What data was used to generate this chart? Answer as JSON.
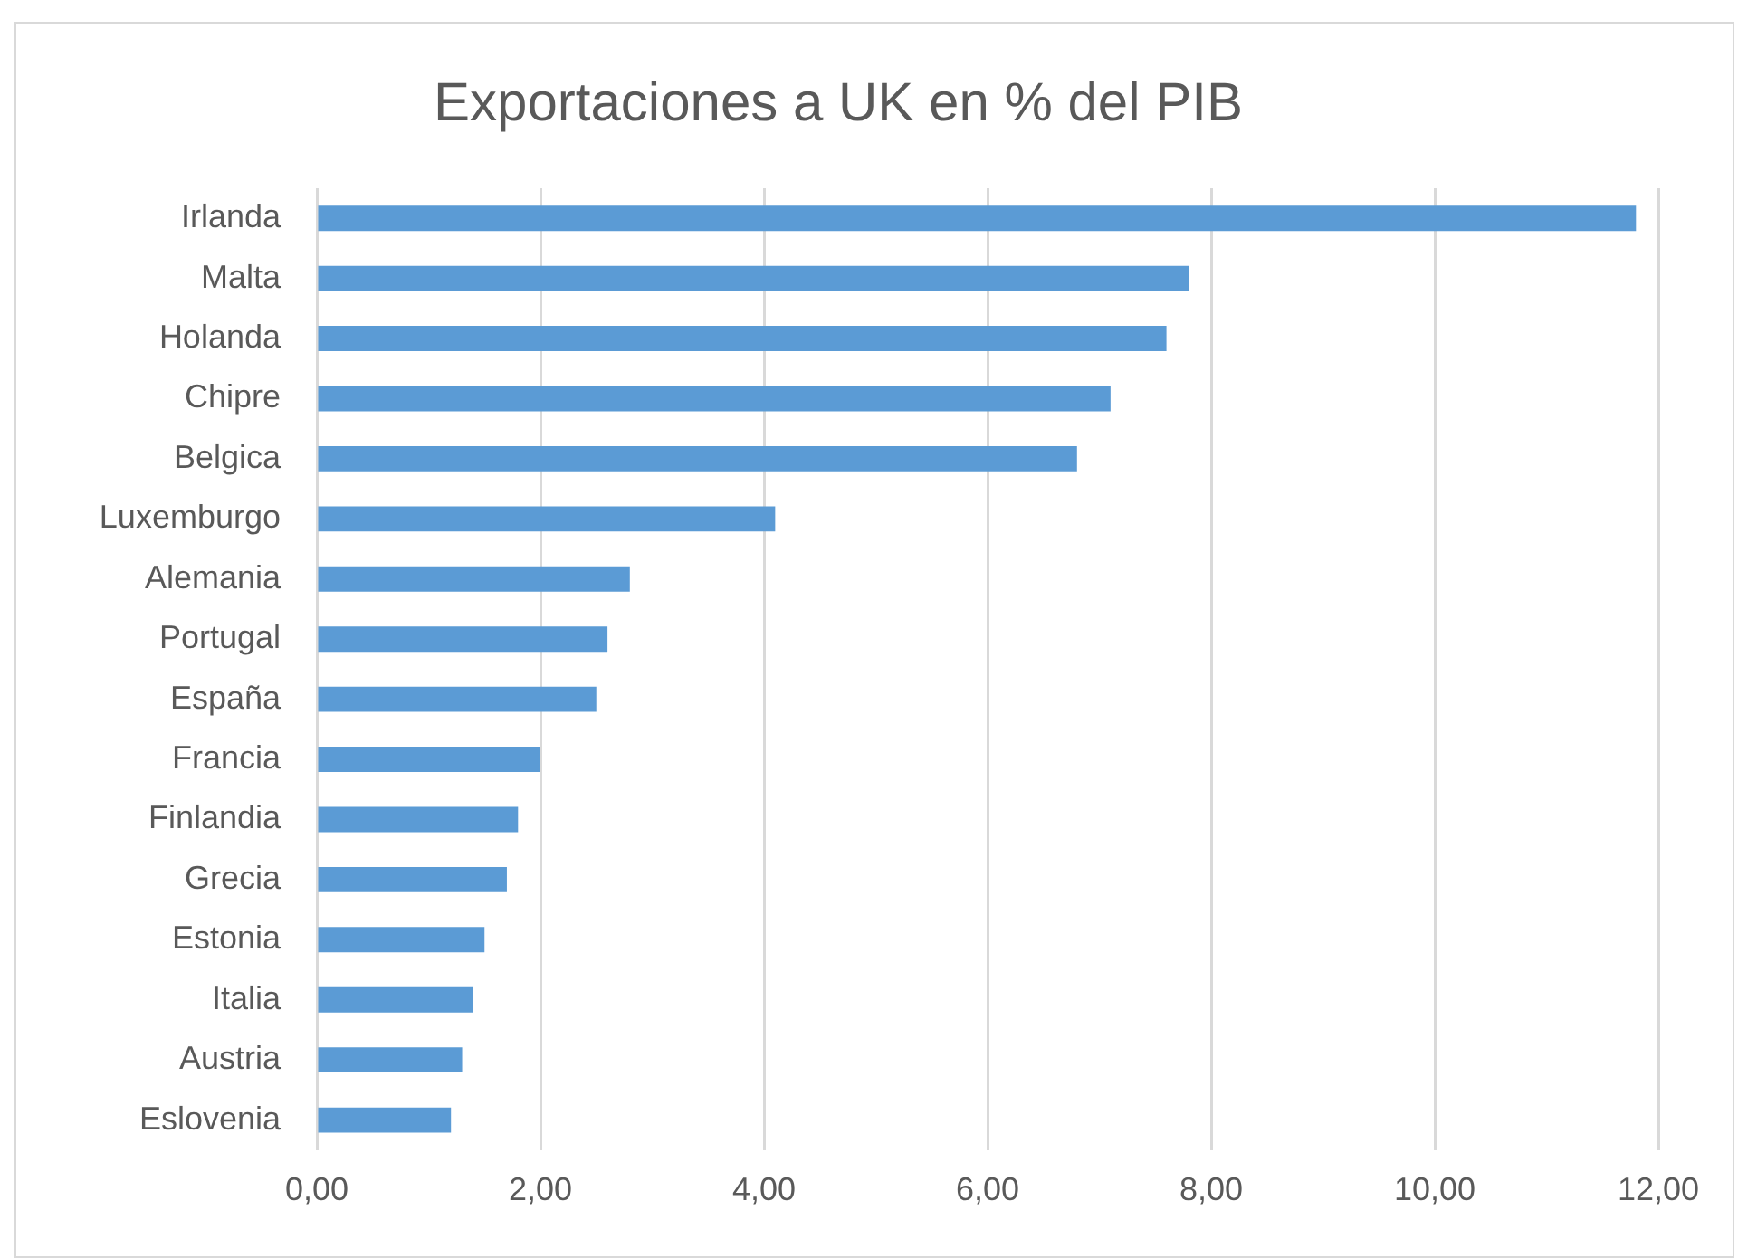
{
  "chart_data": {
    "type": "bar",
    "orientation": "horizontal",
    "title": "Exportaciones a UK en % del PIB",
    "categories": [
      "Irlanda",
      "Malta",
      "Holanda",
      "Chipre",
      "Belgica",
      "Luxemburgo",
      "Alemania",
      "Portugal",
      "España",
      "Francia",
      "Finlandia",
      "Grecia",
      "Estonia",
      "Italia",
      "Austria",
      "Eslovenia"
    ],
    "values": [
      11.8,
      7.8,
      7.6,
      7.1,
      6.8,
      4.1,
      2.8,
      2.6,
      2.5,
      2.0,
      1.8,
      1.7,
      1.5,
      1.4,
      1.3,
      1.2
    ],
    "color": "#5b9bd5",
    "xlim": [
      0,
      12
    ],
    "xticks": [
      {
        "value": 0,
        "label": "0,00"
      },
      {
        "value": 2,
        "label": "2,00"
      },
      {
        "value": 4,
        "label": "4,00"
      },
      {
        "value": 6,
        "label": "6,00"
      },
      {
        "value": 8,
        "label": "8,00"
      },
      {
        "value": 10,
        "label": "10,00"
      },
      {
        "value": 12,
        "label": "12,00"
      }
    ],
    "grid": "x",
    "legend": false
  }
}
